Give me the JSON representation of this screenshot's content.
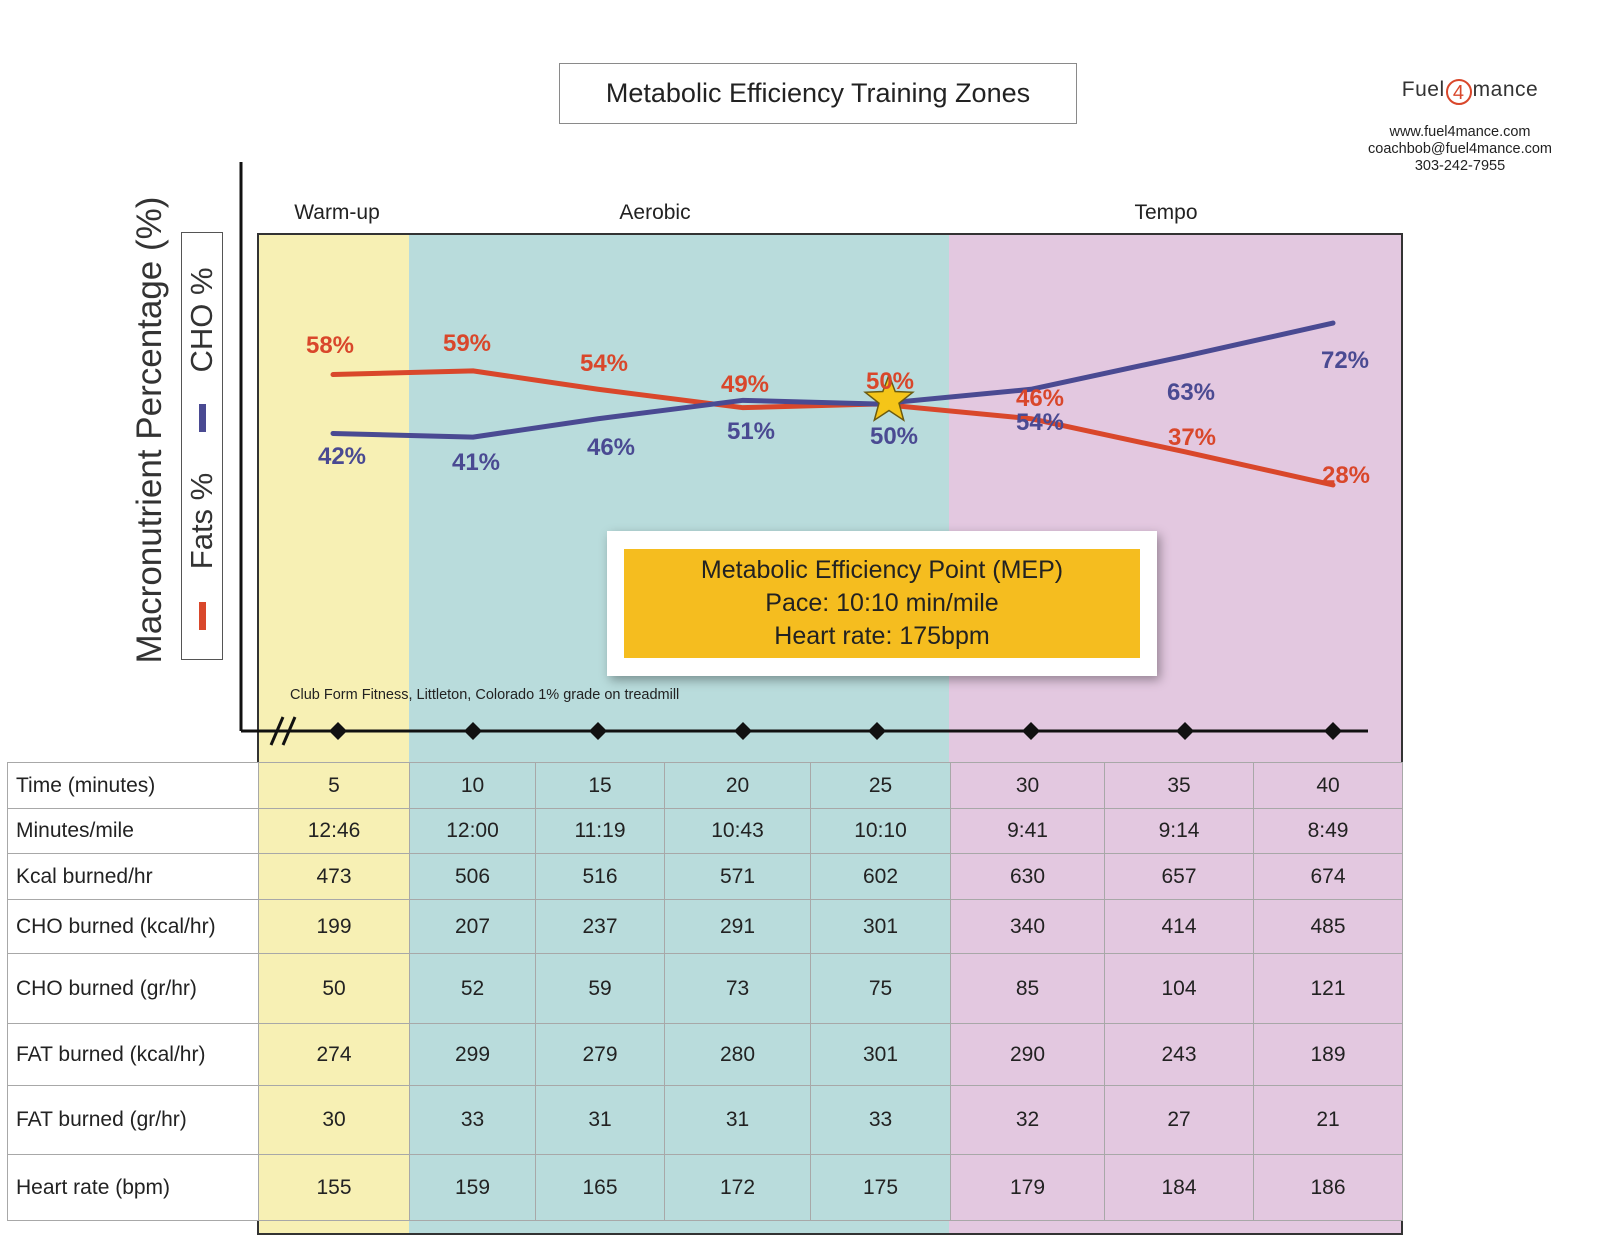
{
  "header": {
    "title": "Metabolic Efficiency Training Zones",
    "brand_prefix": "Fuel",
    "brand_num": "4",
    "brand_suffix": "mance",
    "website": "www.fuel4mance.com",
    "email": "coachbob@fuel4mance.com",
    "phone": "303-242-7955"
  },
  "colors": {
    "fat": "#d9472b",
    "cho": "#4a4a92",
    "warmup_bg": "#f7f0b4",
    "aerobic_bg": "#b9dcdc",
    "tempo_bg": "#e3c8e0",
    "mep_bg": "#f5bd1f"
  },
  "chart_data": {
    "type": "line",
    "title": "Metabolic Efficiency Training Zones",
    "ylabel": "Macronutrient Percentage (%)",
    "x": [
      5,
      10,
      15,
      20,
      25,
      30,
      35,
      40
    ],
    "ylim": [
      20,
      85
    ],
    "legend": [
      "Fats %",
      "CHO %"
    ],
    "legend_position": "left",
    "series": [
      {
        "name": "Fats %",
        "values": [
          58,
          59,
          54,
          49,
          50,
          46,
          37,
          28
        ],
        "labels": [
          "58%",
          "59%",
          "54%",
          "49%",
          "50%",
          "46%",
          "37%",
          "28%"
        ]
      },
      {
        "name": "CHO %",
        "values": [
          42,
          41,
          46,
          51,
          50,
          54,
          63,
          72
        ],
        "labels": [
          "42%",
          "41%",
          "46%",
          "51%",
          "50%",
          "54%",
          "63%",
          "72%"
        ]
      }
    ],
    "zones": [
      {
        "name": "Warm-up",
        "from": 5,
        "to": 5
      },
      {
        "name": "Aerobic",
        "from": 10,
        "to": 25
      },
      {
        "name": "Tempo",
        "from": 30,
        "to": 40
      }
    ],
    "annotation": {
      "marker": "star",
      "at_x": 25,
      "lines": [
        "Metabolic Efficiency Point (MEP)",
        "Pace:  10:10 min/mile",
        "Heart rate: 175bpm"
      ]
    },
    "footnote": "Club Form Fitness, Littleton, Colorado 1% grade on treadmill"
  },
  "table": {
    "rows": [
      {
        "label": "Time (minutes)",
        "values": [
          "5",
          "10",
          "15",
          "20",
          "25",
          "30",
          "35",
          "40"
        ]
      },
      {
        "label": "Minutes/mile",
        "values": [
          "12:46",
          "12:00",
          "11:19",
          "10:43",
          "10:10",
          "9:41",
          "9:14",
          "8:49"
        ]
      },
      {
        "label": "Kcal burned/hr",
        "values": [
          "473",
          "506",
          "516",
          "571",
          "602",
          "630",
          "657",
          "674"
        ]
      },
      {
        "label": "CHO burned (kcal/hr)",
        "values": [
          "199",
          "207",
          "237",
          "291",
          "301",
          "340",
          "414",
          "485"
        ]
      },
      {
        "label": "CHO burned (gr/hr)",
        "values": [
          "50",
          "52",
          "59",
          "73",
          "75",
          "85",
          "104",
          "121"
        ]
      },
      {
        "label": "FAT burned (kcal/hr)",
        "values": [
          "274",
          "299",
          "279",
          "280",
          "301",
          "290",
          "243",
          "189"
        ]
      },
      {
        "label": "FAT burned (gr/hr)",
        "values": [
          "30",
          "33",
          "31",
          "31",
          "33",
          "32",
          "27",
          "21"
        ]
      },
      {
        "label": "Heart rate (bpm)",
        "values": [
          "155",
          "159",
          "165",
          "172",
          "175",
          "179",
          "184",
          "186"
        ]
      }
    ]
  }
}
